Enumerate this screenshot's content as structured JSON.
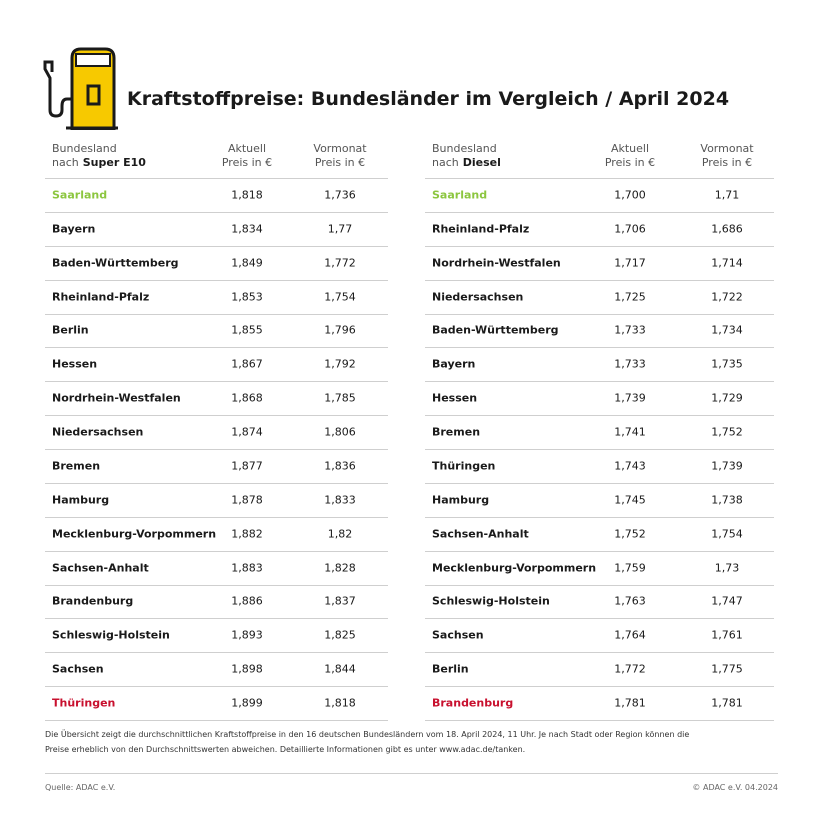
{
  "header": {
    "title": "Kraftstoffpreise: Bundesländer im Vergleich / April 2024"
  },
  "tables": [
    {
      "columns": {
        "name_line1": "Bundesland",
        "name_line2_prefix": "nach",
        "name_line2_bold": "Super E10",
        "current_line1": "Aktuell",
        "current_line2": "Preis in €",
        "previous_line1": "Vormonat",
        "previous_line2": "Preis in €"
      },
      "rows": [
        [
          "Saarland",
          "1,818",
          "1,736"
        ],
        [
          "Bayern",
          "1,834",
          "1,77"
        ],
        [
          "Baden-Württemberg",
          "1,849",
          "1,772"
        ],
        [
          "Rheinland-Pfalz",
          "1,853",
          "1,754"
        ],
        [
          "Berlin",
          "1,855",
          "1,796"
        ],
        [
          "Hessen",
          "1,867",
          "1,792"
        ],
        [
          "Nordrhein-Westfalen",
          "1,868",
          "1,785"
        ],
        [
          "Niedersachsen",
          "1,874",
          "1,806"
        ],
        [
          "Bremen",
          "1,877",
          "1,836"
        ],
        [
          "Hamburg",
          "1,878",
          "1,833"
        ],
        [
          "Mecklenburg-Vorpommern",
          "1,882",
          "1,82"
        ],
        [
          "Sachsen-Anhalt",
          "1,883",
          "1,828"
        ],
        [
          "Brandenburg",
          "1,886",
          "1,837"
        ],
        [
          "Schleswig-Holstein",
          "1,893",
          "1,825"
        ],
        [
          "Sachsen",
          "1,898",
          "1,844"
        ],
        [
          "Thüringen",
          "1,899",
          "1,818"
        ]
      ]
    },
    {
      "columns": {
        "name_line1": "Bundesland",
        "name_line2_prefix": "nach",
        "name_line2_bold": "Diesel",
        "current_line1": "Aktuell",
        "current_line2": "Preis in €",
        "previous_line1": "Vormonat",
        "previous_line2": "Preis in €"
      },
      "rows": [
        [
          "Saarland",
          "1,700",
          "1,71"
        ],
        [
          "Rheinland-Pfalz",
          "1,706",
          "1,686"
        ],
        [
          "Nordrhein-Westfalen",
          "1,717",
          "1,714"
        ],
        [
          "Niedersachsen",
          "1,725",
          "1,722"
        ],
        [
          "Baden-Württemberg",
          "1,733",
          "1,734"
        ],
        [
          "Bayern",
          "1,733",
          "1,735"
        ],
        [
          "Hessen",
          "1,739",
          "1,729"
        ],
        [
          "Bremen",
          "1,741",
          "1,752"
        ],
        [
          "Thüringen",
          "1,743",
          "1,739"
        ],
        [
          "Hamburg",
          "1,745",
          "1,738"
        ],
        [
          "Sachsen-Anhalt",
          "1,752",
          "1,754"
        ],
        [
          "Mecklenburg-Vorpommern",
          "1,759",
          "1,73"
        ],
        [
          "Schleswig-Holstein",
          "1,763",
          "1,747"
        ],
        [
          "Sachsen",
          "1,764",
          "1,761"
        ],
        [
          "Berlin",
          "1,772",
          "1,775"
        ],
        [
          "Brandenburg",
          "1,781",
          "1,781"
        ]
      ]
    }
  ],
  "footnote": [
    "Die Übersicht zeigt die durchschnittlichen Kraftstoffpreise in den 16 deutschen Bundesländern vom 18. April 2024, 11 Uhr. Je nach Stadt oder Region können die",
    "Preise erheblich von den Durchschnittswerten abweichen. Detaillierte Informationen gibt es unter www.adac.de/tanken."
  ],
  "footer": {
    "source": "Quelle: ADAC e.V.",
    "copyright": "© ADAC e.V. 04.2024"
  }
}
